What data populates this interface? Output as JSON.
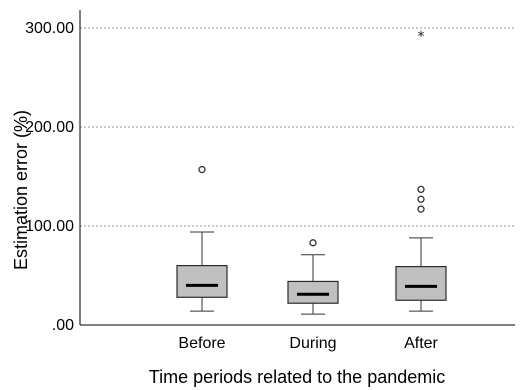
{
  "chart_data": {
    "type": "box",
    "xlabel": "Time periods related to the pandemic",
    "ylabel": "Estimation error (%)",
    "ylim": [
      0,
      300
    ],
    "yticks": [
      0,
      100,
      200,
      300
    ],
    "ytick_labels": [
      ".00",
      "100.00",
      "200.00",
      "300.00"
    ],
    "grid": "horizontal dotted at y ticks",
    "categories": [
      "Before",
      "During",
      "After"
    ],
    "boxes": [
      {
        "category": "Before",
        "whisker_low": 14,
        "q1": 28,
        "median": 40,
        "q3": 60,
        "whisker_high": 94,
        "outliers": [
          157
        ],
        "extremes": []
      },
      {
        "category": "During",
        "whisker_low": 11,
        "q1": 22,
        "median": 31,
        "q3": 44,
        "whisker_high": 71,
        "outliers": [
          83
        ],
        "extremes": []
      },
      {
        "category": "After",
        "whisker_low": 14,
        "q1": 25,
        "median": 39,
        "q3": 59,
        "whisker_high": 88,
        "outliers": [
          117,
          127,
          137
        ],
        "extremes": [
          293
        ]
      }
    ],
    "colors": {
      "box_fill": "#c0c0c0",
      "box_stroke": "#2b2b2b",
      "median": "#000000",
      "grid": "#9a9a9a"
    }
  }
}
